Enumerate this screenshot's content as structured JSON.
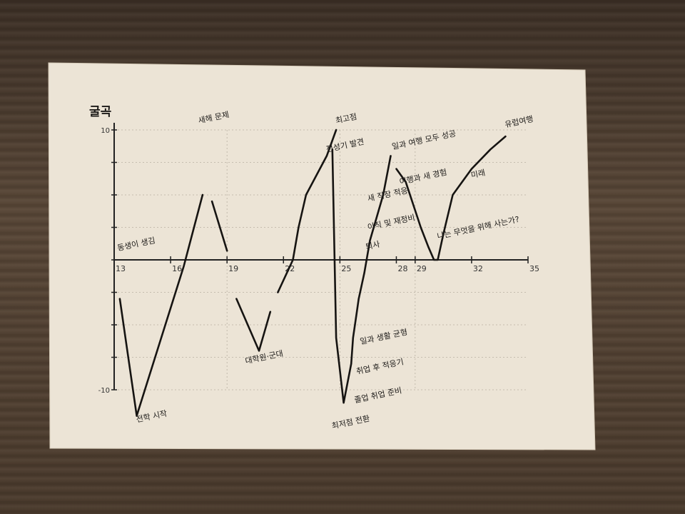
{
  "chart_data": {
    "type": "line",
    "title": "",
    "ylabel": "굴곡",
    "xlabel": "",
    "xlim": [
      13,
      35
    ],
    "ylim": [
      -10,
      10
    ],
    "y_tick_labels": [
      "10",
      "-10"
    ],
    "x_tick_labels": [
      "13",
      "16",
      "19",
      "22",
      "25",
      "28",
      "29",
      "32",
      "35"
    ],
    "grid": true,
    "series": [
      {
        "segments": [
          [
            [
              13.3,
              -3
            ],
            [
              14.2,
              -12
            ],
            [
              16.7,
              -0.5
            ],
            [
              17.7,
              5
            ]
          ],
          [
            [
              18.2,
              4.5
            ],
            [
              19.0,
              0.7
            ]
          ],
          [
            [
              19.5,
              -3
            ],
            [
              20.7,
              -7
            ],
            [
              21.3,
              -4
            ]
          ],
          [
            [
              21.7,
              -2.5
            ],
            [
              22.5,
              0
            ],
            [
              22.8,
              2.5
            ],
            [
              23.2,
              5
            ],
            [
              24.3,
              8
            ],
            [
              24.8,
              10
            ]
          ],
          [
            [
              24.6,
              8.5
            ],
            [
              24.8,
              -6
            ],
            [
              25.2,
              -11
            ],
            [
              25.6,
              -8
            ],
            [
              25.7,
              -6
            ],
            [
              25.9,
              -4
            ],
            [
              26.0,
              -3
            ],
            [
              26.3,
              -1
            ],
            [
              26.6,
              1.5
            ],
            [
              27.3,
              5
            ],
            [
              27.7,
              8
            ]
          ],
          [
            [
              28.0,
              7
            ],
            [
              28.5,
              6
            ],
            [
              29.3,
              2.5
            ],
            [
              29.7,
              1
            ],
            [
              30.0,
              0
            ],
            [
              30.2,
              0
            ],
            [
              30.5,
              2
            ],
            [
              31.0,
              5
            ],
            [
              32.0,
              7
            ],
            [
              33.0,
              8.5
            ],
            [
              33.8,
              9.5
            ]
          ]
        ]
      }
    ],
    "annotations": [
      {
        "text": "동생이 생김",
        "x": 13.2,
        "y": 0.7
      },
      {
        "text": "전학 시작",
        "x": 14.2,
        "y": -12.5
      },
      {
        "text": "새해 문제",
        "x": 17.5,
        "y": 10.5
      },
      {
        "text": "대학원·군대",
        "x": 20.0,
        "y": -8
      },
      {
        "text": "전성기 발견",
        "x": 24.3,
        "y": 8.3
      },
      {
        "text": "최고점",
        "x": 24.8,
        "y": 10.5
      },
      {
        "text": "최저점 전환",
        "x": 24.6,
        "y": -13
      },
      {
        "text": "졸업 취업 준비",
        "x": 25.8,
        "y": -11
      },
      {
        "text": "취업 후 적응기",
        "x": 25.9,
        "y": -8.8
      },
      {
        "text": "일과 생활 균형",
        "x": 26.1,
        "y": -6.5
      },
      {
        "text": "퇴사",
        "x": 26.4,
        "y": 0.8
      },
      {
        "text": "이직 및 재정비",
        "x": 26.5,
        "y": 2.3
      },
      {
        "text": "새 직장 적응",
        "x": 26.5,
        "y": 4.5
      },
      {
        "text": "일과 여행 모두 성공",
        "x": 27.8,
        "y": 8.5
      },
      {
        "text": "여행과 새 경험",
        "x": 28.2,
        "y": 5.8
      },
      {
        "text": "나는 무엇을 위해 사는가?",
        "x": 30.2,
        "y": 1.6
      },
      {
        "text": "미래",
        "x": 32.0,
        "y": 6.3
      },
      {
        "text": "유럽여행",
        "x": 33.8,
        "y": 10.2
      }
    ]
  }
}
